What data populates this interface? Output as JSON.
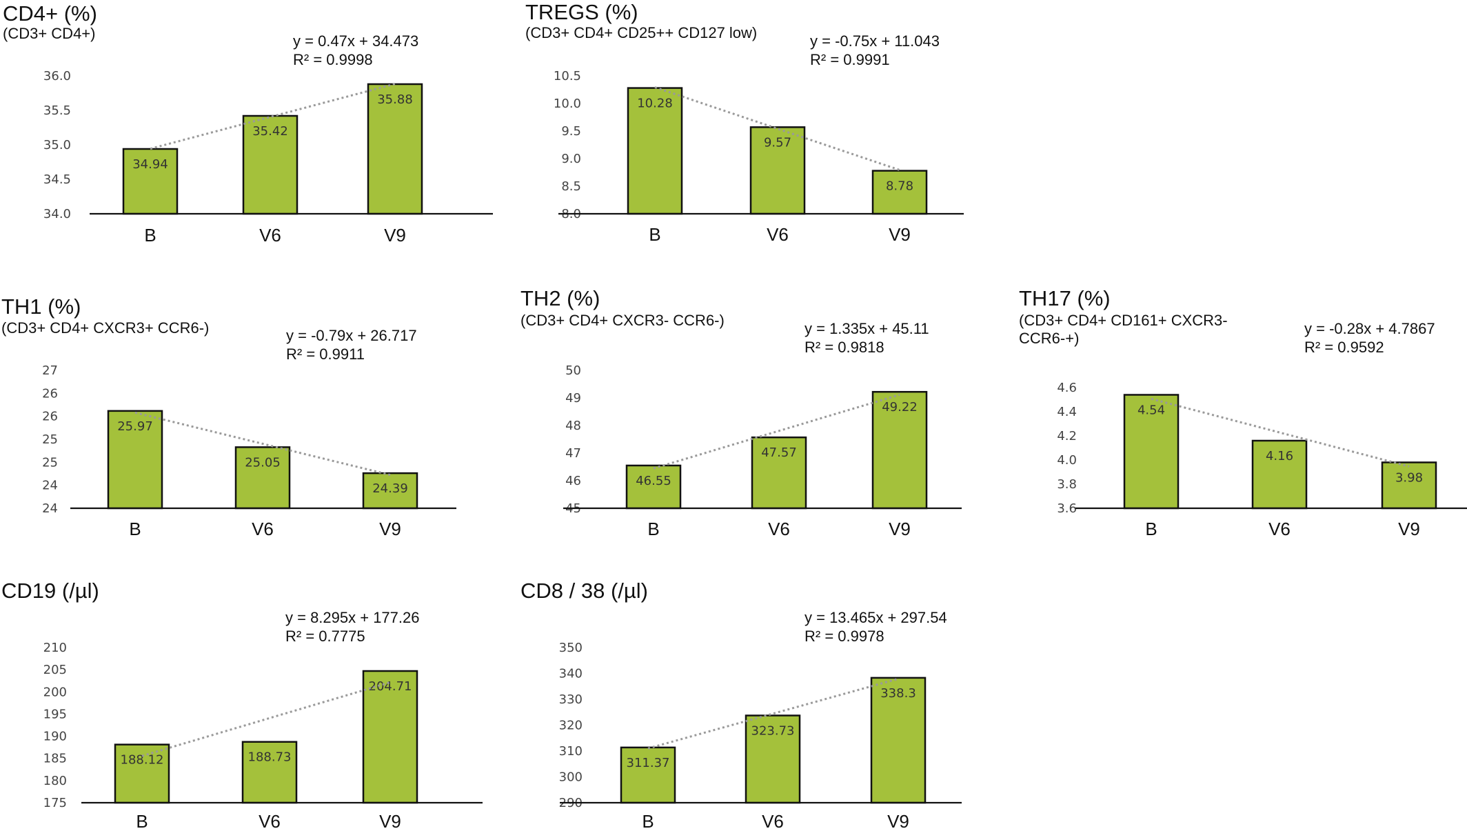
{
  "chart_data": [
    {
      "type": "bar",
      "title": "CD4+ (%)",
      "subtitle": [
        "(CD3+ CD4+)"
      ],
      "categories": [
        "B",
        "V6",
        "V9"
      ],
      "values": [
        34.94,
        35.42,
        35.88
      ],
      "value_labels": [
        "34.94",
        "35.42",
        "35.88"
      ],
      "ylim": [
        34.0,
        36.0
      ],
      "yticks": [
        "34.0",
        "34.5",
        "35.0",
        "35.5",
        "36.0"
      ],
      "trendline": "linear",
      "equation": "y = 0.47x + 34.473",
      "r_squared": "R² = 0.9998",
      "bar_color": "#a4c13b"
    },
    {
      "type": "bar",
      "title": "TREGS (%)",
      "subtitle": [
        "(CD3+ CD4+ CD25++ CD127 low)"
      ],
      "categories": [
        "B",
        "V6",
        "V9"
      ],
      "values": [
        10.28,
        9.57,
        8.78
      ],
      "value_labels": [
        "10.28",
        "9.57",
        "8.78"
      ],
      "ylim": [
        8.0,
        10.5
      ],
      "yticks": [
        "8.0",
        "8.5",
        "9.0",
        "9.5",
        "10.0",
        "10.5"
      ],
      "trendline": "linear",
      "equation": "y = -0.75x + 11.043",
      "r_squared": "R² = 0.9991",
      "bar_color": "#a4c13b"
    },
    {
      "type": "bar",
      "title": "TH1 (%)",
      "subtitle": [
        "(CD3+ CD4+ CXCR3+ CCR6-)"
      ],
      "categories": [
        "B",
        "V6",
        "V9"
      ],
      "values": [
        25.97,
        25.05,
        24.39
      ],
      "value_labels": [
        "25.97",
        "25.05",
        "24.39"
      ],
      "ylim": [
        23.5,
        27.0
      ],
      "yticks": [
        "24",
        "24",
        "25",
        "25",
        "26",
        "26",
        "27"
      ],
      "trendline": "linear",
      "equation": "y = -0.79x + 26.717",
      "r_squared": "R² = 0.9911",
      "bar_color": "#a4c13b"
    },
    {
      "type": "bar",
      "title": "TH2 (%)",
      "subtitle": [
        "(CD3+ CD4+ CXCR3- CCR6-)"
      ],
      "categories": [
        "B",
        "V6",
        "V9"
      ],
      "values": [
        46.55,
        47.57,
        49.22
      ],
      "value_labels": [
        "46.55",
        "47.57",
        "49.22"
      ],
      "ylim": [
        45,
        50
      ],
      "yticks": [
        "45",
        "46",
        "47",
        "48",
        "49",
        "50"
      ],
      "trendline": "linear",
      "equation": "y = 1.335x + 45.11",
      "r_squared": "R² = 0.9818",
      "bar_color": "#a4c13b"
    },
    {
      "type": "bar",
      "title": "TH17 (%)",
      "subtitle": [
        "(CD3+ CD4+ CD161+ CXCR3-",
        "CCR6-+)"
      ],
      "categories": [
        "B",
        "V6",
        "V9"
      ],
      "values": [
        4.54,
        4.16,
        3.98
      ],
      "value_labels": [
        "4.54",
        "4.16",
        "3.98"
      ],
      "ylim": [
        3.6,
        4.6
      ],
      "yticks": [
        "3.6",
        "3.8",
        "4.0",
        "4.2",
        "4.4",
        "4.6"
      ],
      "trendline": "linear",
      "equation": "y = -0.28x + 4.7867",
      "r_squared": "R² = 0.9592",
      "bar_color": "#a4c13b"
    },
    {
      "type": "bar",
      "title": "CD19 (/µl)",
      "subtitle": [],
      "categories": [
        "B",
        "V6",
        "V9"
      ],
      "values": [
        188.12,
        188.73,
        204.71
      ],
      "value_labels": [
        "188.12",
        "188.73",
        "204.71"
      ],
      "ylim": [
        175,
        210
      ],
      "yticks": [
        "175",
        "180",
        "185",
        "190",
        "195",
        "200",
        "205",
        "210"
      ],
      "trendline": "linear",
      "equation": "y = 8.295x + 177.26",
      "r_squared": "R² = 0.7775",
      "bar_color": "#a4c13b"
    },
    {
      "type": "bar",
      "title": "CD8 / 38 (/µl)",
      "subtitle": [],
      "categories": [
        "B",
        "V6",
        "V9"
      ],
      "values": [
        311.37,
        323.73,
        338.3
      ],
      "value_labels": [
        "311.37",
        "323.73",
        "338.3"
      ],
      "ylim": [
        290,
        350
      ],
      "yticks": [
        "290",
        "300",
        "310",
        "320",
        "330",
        "340",
        "350"
      ],
      "trendline": "linear",
      "equation": "y = 13.465x + 297.54",
      "r_squared": "R² = 0.9978",
      "bar_color": "#a4c13b"
    }
  ]
}
